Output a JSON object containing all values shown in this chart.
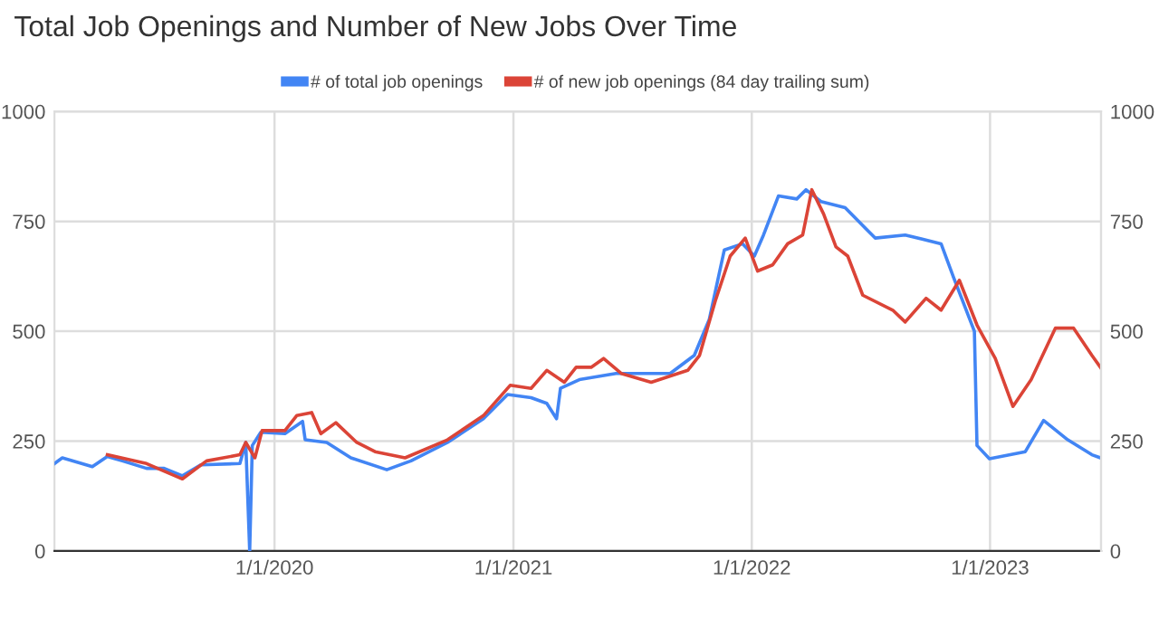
{
  "chart_data": {
    "type": "line",
    "title": "Total Job Openings and Number of New Jobs Over Time",
    "xlim": [
      "2019-01-29",
      "2023-06-20"
    ],
    "xticks": [
      {
        "value": "2020-01-01",
        "label": "1/1/2020"
      },
      {
        "value": "2021-01-01",
        "label": "1/1/2021"
      },
      {
        "value": "2022-01-01",
        "label": "1/1/2022"
      },
      {
        "value": "2023-01-01",
        "label": "1/1/2023"
      }
    ],
    "ylim": [
      0,
      1000
    ],
    "yticks": [
      0,
      250,
      500,
      750,
      1000
    ],
    "y2lim": [
      0,
      1000
    ],
    "y2ticks": [
      0,
      250,
      500,
      750,
      1000
    ],
    "grid": true,
    "legend": "top",
    "marker": "none",
    "line_style": "solid",
    "series": [
      {
        "name": "# of total job openings",
        "color": "#4285f4",
        "x": [
          "2019-01-29",
          "2019-02-10",
          "2019-03-28",
          "2019-04-20",
          "2019-05-13",
          "2019-06-19",
          "2019-07-16",
          "2019-08-13",
          "2019-09-10",
          "2019-11-09",
          "2019-11-18",
          "2019-11-24",
          "2019-11-28",
          "2019-12-11",
          "2020-01-17",
          "2020-02-13",
          "2020-02-17",
          "2020-03-21",
          "2020-04-27",
          "2020-06-21",
          "2020-07-28",
          "2020-09-22",
          "2020-11-16",
          "2020-12-23",
          "2021-01-28",
          "2021-02-21",
          "2021-03-08",
          "2021-03-14",
          "2021-04-12",
          "2021-06-07",
          "2021-08-29",
          "2021-10-05",
          "2021-10-28",
          "2021-11-20",
          "2021-12-18",
          "2022-01-05",
          "2022-01-19",
          "2022-02-11",
          "2022-03-11",
          "2022-03-25",
          "2022-04-17",
          "2022-05-24",
          "2022-07-09",
          "2022-08-24",
          "2022-10-18",
          "2022-11-06",
          "2022-12-08",
          "2022-12-12",
          "2022-12-31",
          "2023-02-24",
          "2023-03-24",
          "2023-04-30",
          "2023-06-06",
          "2023-06-19"
        ],
        "values": [
          199,
          212,
          192,
          215,
          205,
          188,
          188,
          171,
          196,
          199,
          247,
          0,
          240,
          270,
          267,
          295,
          253,
          247,
          212,
          185,
          205,
          247,
          301,
          356,
          349,
          336,
          301,
          370,
          390,
          404,
          404,
          445,
          527,
          685,
          699,
          671,
          719,
          808,
          801,
          822,
          795,
          781,
          712,
          719,
          699,
          623,
          500,
          240,
          210,
          226,
          297,
          253,
          219,
          212
        ]
      },
      {
        "name": "# of new job openings (84 day trailing sum)",
        "color": "#db4437",
        "x": [
          "2019-04-20",
          "2019-06-19",
          "2019-08-13",
          "2019-09-19",
          "2019-11-09",
          "2019-11-18",
          "2019-12-02",
          "2019-12-13",
          "2020-01-17",
          "2020-02-04",
          "2020-02-27",
          "2020-03-12",
          "2020-04-04",
          "2020-05-06",
          "2020-06-03",
          "2020-07-19",
          "2020-09-22",
          "2020-11-16",
          "2020-12-27",
          "2021-01-28",
          "2021-02-21",
          "2021-03-20",
          "2021-04-07",
          "2021-04-30",
          "2021-05-19",
          "2021-06-15",
          "2021-07-31",
          "2021-09-25",
          "2021-10-13",
          "2021-11-06",
          "2021-11-29",
          "2021-12-22",
          "2022-01-10",
          "2022-02-02",
          "2022-02-25",
          "2022-03-20",
          "2022-04-03",
          "2022-04-21",
          "2022-05-10",
          "2022-05-28",
          "2022-06-20",
          "2022-08-05",
          "2022-08-24",
          "2022-09-25",
          "2022-10-18",
          "2022-11-15",
          "2022-12-12",
          "2023-01-09",
          "2023-02-05",
          "2023-03-05",
          "2023-04-11",
          "2023-05-09",
          "2023-06-06",
          "2023-06-19"
        ],
        "values": [
          219,
          199,
          164,
          205,
          219,
          247,
          212,
          274,
          274,
          308,
          315,
          267,
          292,
          247,
          226,
          212,
          253,
          308,
          377,
          370,
          411,
          384,
          418,
          418,
          438,
          404,
          384,
          411,
          445,
          568,
          671,
          712,
          637,
          651,
          699,
          719,
          822,
          767,
          692,
          671,
          582,
          548,
          521,
          575,
          548,
          616,
          514,
          438,
          329,
          390,
          507,
          507,
          445,
          418
        ]
      }
    ]
  }
}
